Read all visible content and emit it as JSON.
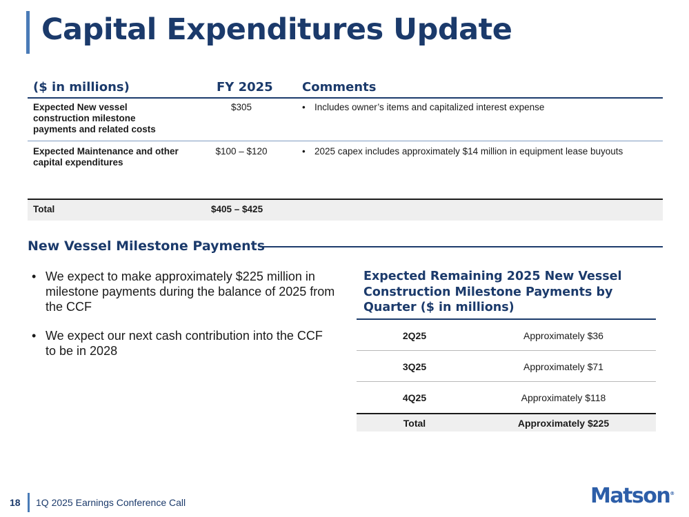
{
  "title": "Capital Expenditures Update",
  "capex_table": {
    "headers": {
      "label": "($ in millions)",
      "value": "FY 2025",
      "comments": "Comments"
    },
    "rows": [
      {
        "label": "Expected New vessel construction milestone payments and related costs",
        "value": "$305",
        "comment": "Includes owner’s items and capitalized interest expense"
      },
      {
        "label": "Expected Maintenance and other capital expenditures",
        "value": "$100 – $120",
        "comment": "2025 capex includes approximately $14 million in equipment lease buyouts"
      }
    ],
    "total": {
      "label": "Total",
      "value": "$405 – $425"
    }
  },
  "milestone_section": {
    "title": "New Vessel Milestone Payments",
    "bullets": [
      "We expect to make approximately $225 million in milestone payments during the balance of 2025 from the CCF",
      "We expect our next cash contribution into the CCF to be in 2028"
    ]
  },
  "quarterly_table": {
    "title": "Expected Remaining 2025 New Vessel Construction Milestone Payments by Quarter ($ in millions)",
    "rows": [
      {
        "quarter": "2Q25",
        "amount": "Approximately $36"
      },
      {
        "quarter": "3Q25",
        "amount": "Approximately $71"
      },
      {
        "quarter": "4Q25",
        "amount": "Approximately $118"
      }
    ],
    "total": {
      "quarter": "Total",
      "amount": "Approximately $225"
    }
  },
  "footer": {
    "page_number": "18",
    "text": "1Q 2025 Earnings Conference Call",
    "logo": "Matson",
    "logo_mark": "®"
  },
  "colors": {
    "navy": "#1b3a6b",
    "accent_blue": "#4a7bb7",
    "logo_blue": "#2d5ea8"
  }
}
